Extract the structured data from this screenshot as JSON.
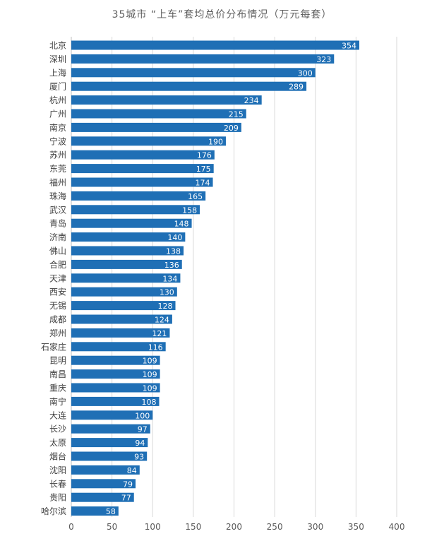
{
  "chart_data": {
    "type": "bar",
    "orientation": "horizontal",
    "title": "35城市 “上车”套均总价分布情况（万元每套）",
    "xlabel": "",
    "ylabel": "",
    "xlim": [
      0,
      400
    ],
    "x_ticks": [
      0,
      50,
      100,
      150,
      200,
      250,
      300,
      350,
      400
    ],
    "grid": true,
    "data_labels": true,
    "bar_color": "#1f6fb5",
    "label_color": "#ffffff",
    "categories": [
      "北京",
      "深圳",
      "上海",
      "厦门",
      "杭州",
      "广州",
      "南京",
      "宁波",
      "苏州",
      "东莞",
      "福州",
      "珠海",
      "武汉",
      "青岛",
      "济南",
      "佛山",
      "合肥",
      "天津",
      "西安",
      "无锡",
      "成都",
      "郑州",
      "石家庄",
      "昆明",
      "南昌",
      "重庆",
      "南宁",
      "大连",
      "长沙",
      "太原",
      "烟台",
      "沈阳",
      "长春",
      "贵阳",
      "哈尔滨"
    ],
    "values": [
      354,
      323,
      300,
      289,
      234,
      215,
      209,
      190,
      176,
      175,
      174,
      165,
      158,
      148,
      140,
      138,
      136,
      134,
      130,
      128,
      124,
      121,
      116,
      109,
      109,
      109,
      108,
      100,
      97,
      94,
      93,
      84,
      79,
      77,
      58
    ]
  }
}
